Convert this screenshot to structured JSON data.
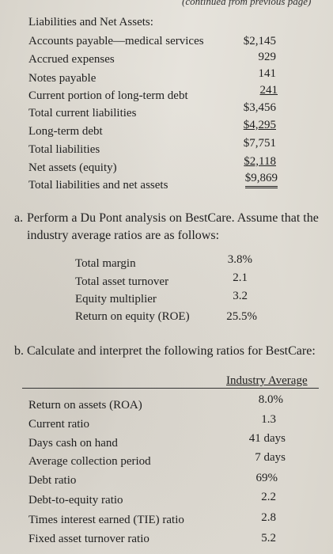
{
  "header_fragment": "(continued from previous page)",
  "liabilities": {
    "heading": "Liabilities and Net Assets:",
    "rows": [
      {
        "label": "Accounts payable—medical services",
        "value": "$2,145"
      },
      {
        "label": "Accrued expenses",
        "value": "929"
      },
      {
        "label": "Notes payable",
        "value": "141"
      },
      {
        "label": "Current portion of long-term debt",
        "value": "241"
      },
      {
        "label": "Total current liabilities",
        "value": "$3,456"
      },
      {
        "label": "Long-term debt",
        "value": "$4,295"
      },
      {
        "label": "Total liabilities",
        "value": "$7,751"
      },
      {
        "label": "Net assets (equity)",
        "value": "$2,118"
      },
      {
        "label": "Total liabilities and net assets",
        "value": "$9,869"
      }
    ]
  },
  "part_a": {
    "marker": "a.",
    "line1": "Perform a Du Pont analysis on BestCare. Assume that the",
    "line2": "industry average ratios are as follows:",
    "ratios": [
      {
        "label": "Total margin",
        "value": "3.8%"
      },
      {
        "label": "Total asset turnover",
        "value": "2.1"
      },
      {
        "label": "Equity multiplier",
        "value": "3.2"
      },
      {
        "label": "Return on equity (ROE)",
        "value": "25.5%"
      }
    ]
  },
  "part_b": {
    "marker": "b.",
    "text": "Calculate and interpret the following ratios for BestCare:",
    "column_header": "Industry Average",
    "rows": [
      {
        "label": "Return on assets (ROA)",
        "value": "8.0%"
      },
      {
        "label": "Current ratio",
        "value": "1.3"
      },
      {
        "label": "Days cash on hand",
        "value": "41 days"
      },
      {
        "label": "Average collection period",
        "value": "7 days"
      },
      {
        "label": "Debt ratio",
        "value": "69%"
      },
      {
        "label": "Debt-to-equity ratio",
        "value": "2.2"
      },
      {
        "label": "Times interest earned (TIE) ratio",
        "value": "2.8"
      },
      {
        "label": "Fixed asset turnover ratio",
        "value": "5.2"
      }
    ]
  }
}
